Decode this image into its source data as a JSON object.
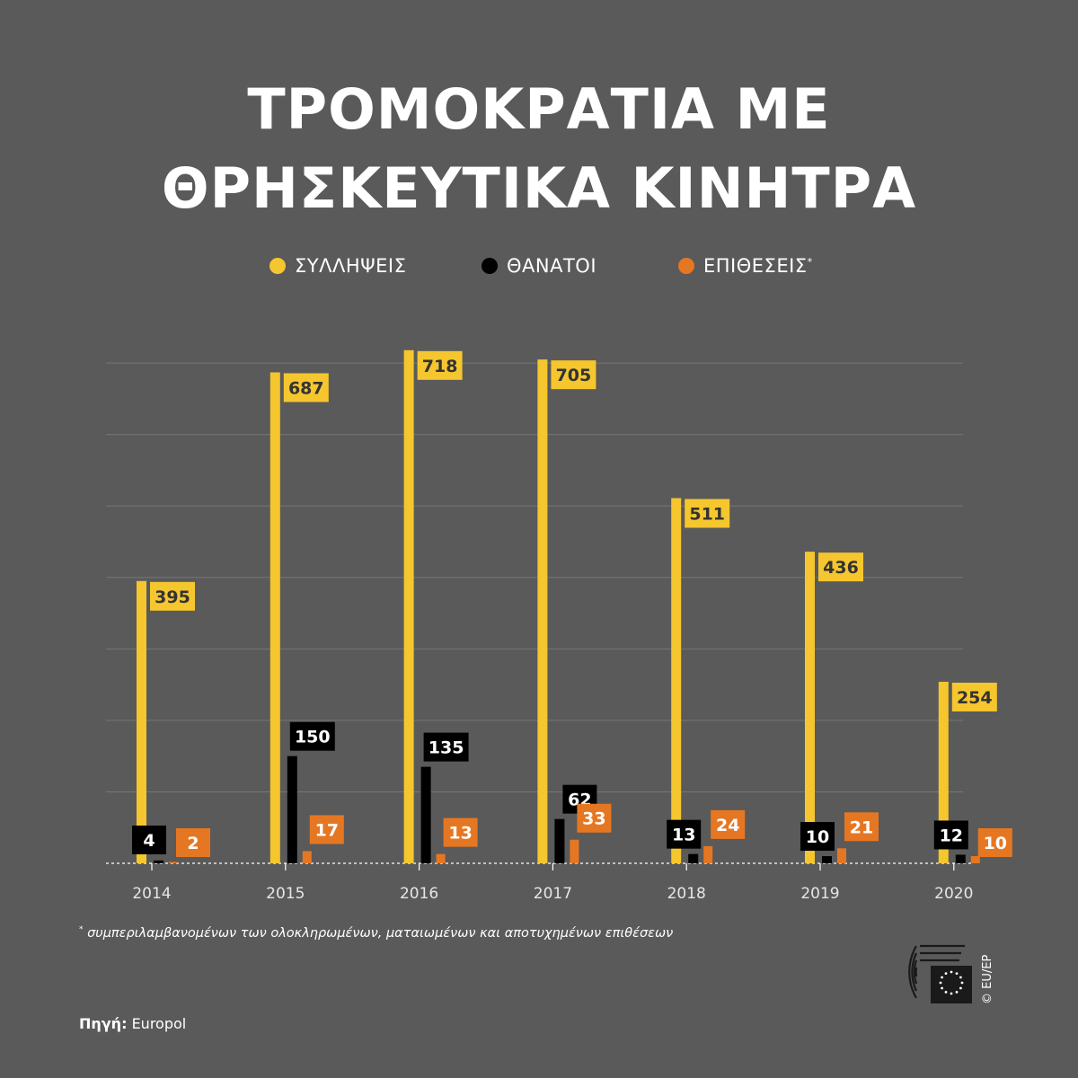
{
  "title_line1": "ΤΡΟΜΟΚΡΑΤΙΑ ΜΕ",
  "title_line2": "ΘΡΗΣΚΕΥΤΙΚΑ ΚΙΝΗΤΡΑ",
  "legend": [
    {
      "label": "ΣΥΛΛΗΨΕΙΣ",
      "marker": "",
      "color": "#f5c62e"
    },
    {
      "label": "ΘΑΝΑΤΟΙ",
      "marker": "",
      "color": "#000000"
    },
    {
      "label": "ΕΠΙΘΕΣΕΙΣ",
      "marker": "*",
      "color": "#e67722"
    }
  ],
  "footnote_marker": "*",
  "footnote": "συμπεριλαμβανομένων των ολοκληρωμένων, ματαιωμένων και αποτυχημένων επιθέσεων",
  "source_label": "Πηγή:",
  "source": "Europol",
  "copyright": "© EU/EP",
  "colors": {
    "background": "#5a5a5a",
    "arrests": "#f5c62e",
    "deaths": "#000000",
    "attacks": "#e67722"
  },
  "chart_data": {
    "type": "bar",
    "categories": [
      "2014",
      "2015",
      "2016",
      "2017",
      "2018",
      "2019",
      "2020"
    ],
    "series": [
      {
        "name": "ΣΥΛΛΗΨΕΙΣ",
        "values": [
          395,
          687,
          718,
          705,
          511,
          436,
          254
        ]
      },
      {
        "name": "ΘΑΝΑΤΟΙ",
        "values": [
          4,
          150,
          135,
          62,
          13,
          10,
          12
        ]
      },
      {
        "name": "ΕΠΙΘΕΣΕΙΣ",
        "values": [
          2,
          17,
          13,
          33,
          24,
          21,
          10
        ]
      }
    ],
    "ylim": [
      0,
      700
    ],
    "grid": true,
    "legend_position": "top"
  }
}
